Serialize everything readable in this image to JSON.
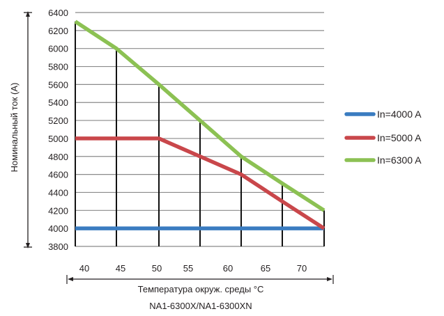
{
  "chart_data": {
    "type": "line",
    "ylabel": "Номинальный ток (А)",
    "xlabel": "Температура окруж. среды °С",
    "subtitle": "NA1-6300X/NA1-6300XN",
    "x": [
      40,
      45,
      50,
      55,
      60,
      65,
      70
    ],
    "ylim": [
      3800,
      6400
    ],
    "yticks": [
      3800,
      4000,
      4200,
      4400,
      4600,
      4800,
      5000,
      5200,
      5400,
      5600,
      5800,
      6000,
      6200,
      6400
    ],
    "xticks": [
      "40",
      "45",
      "50",
      "55",
      "60",
      "65",
      "70"
    ],
    "grid": true,
    "legend_position": "right",
    "series": [
      {
        "name": "In=4000 A",
        "color": "#3a7cc0",
        "values": [
          4000,
          4000,
          4000,
          4000,
          4000,
          4000,
          4000
        ]
      },
      {
        "name": "In=5000 A",
        "color": "#c9474b",
        "values": [
          5000,
          5000,
          5000,
          4800,
          4600,
          4300,
          4000
        ]
      },
      {
        "name": "In=6300 A",
        "color": "#8cc153",
        "values": [
          6300,
          6000,
          5600,
          5200,
          4800,
          4500,
          4200
        ]
      }
    ]
  }
}
